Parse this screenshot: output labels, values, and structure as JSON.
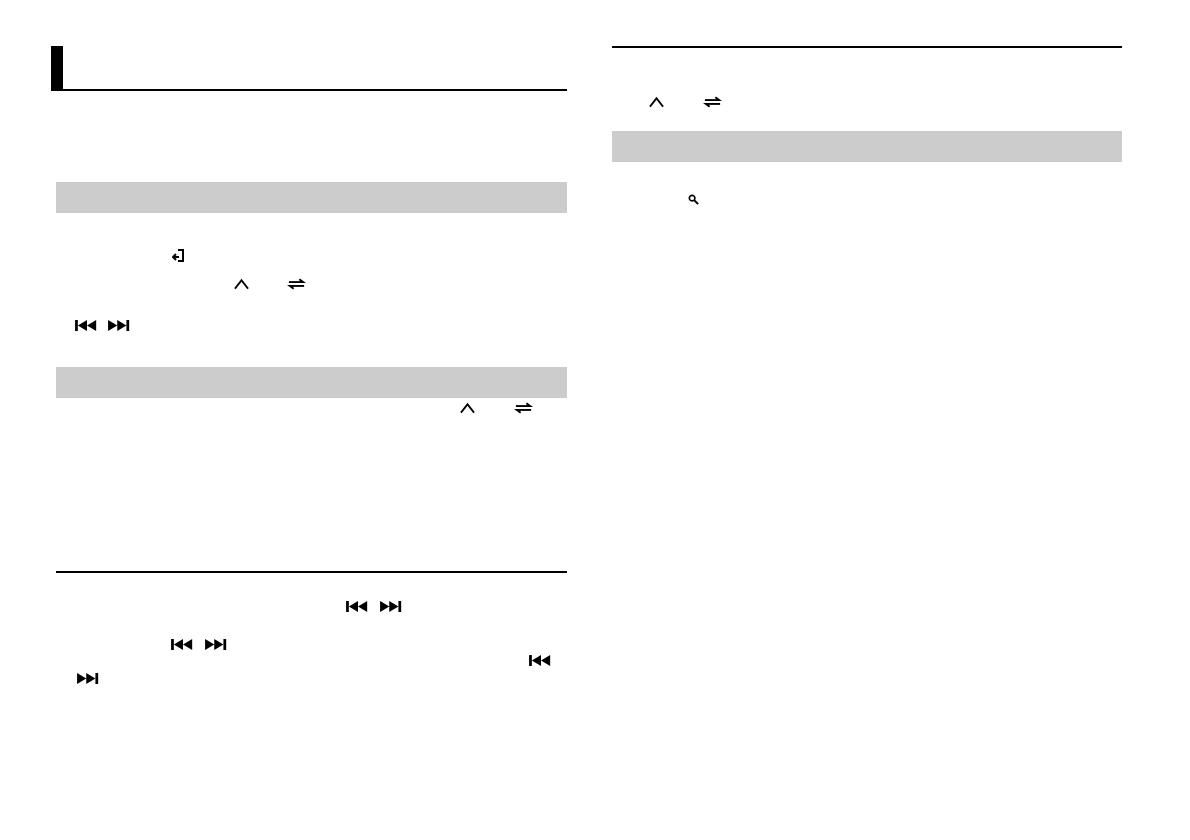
{
  "page": {
    "colors": {
      "section_bar": "#cccccc",
      "rule": "#000000",
      "text": "#000000"
    },
    "left_column": {
      "heading_marker": "black-tab",
      "section_bars": 2,
      "icons": [
        "enter-icon",
        "up-caret-icon",
        "repeat-icon",
        "prev-track-icon",
        "next-track-icon",
        "up-caret-icon",
        "repeat-icon",
        "prev-track-icon",
        "next-track-icon",
        "prev-track-icon",
        "next-track-icon",
        "prev-track-icon",
        "next-track-icon"
      ]
    },
    "right_column": {
      "section_bars": 1,
      "icons": [
        "up-caret-icon",
        "repeat-icon",
        "search-icon"
      ]
    }
  }
}
